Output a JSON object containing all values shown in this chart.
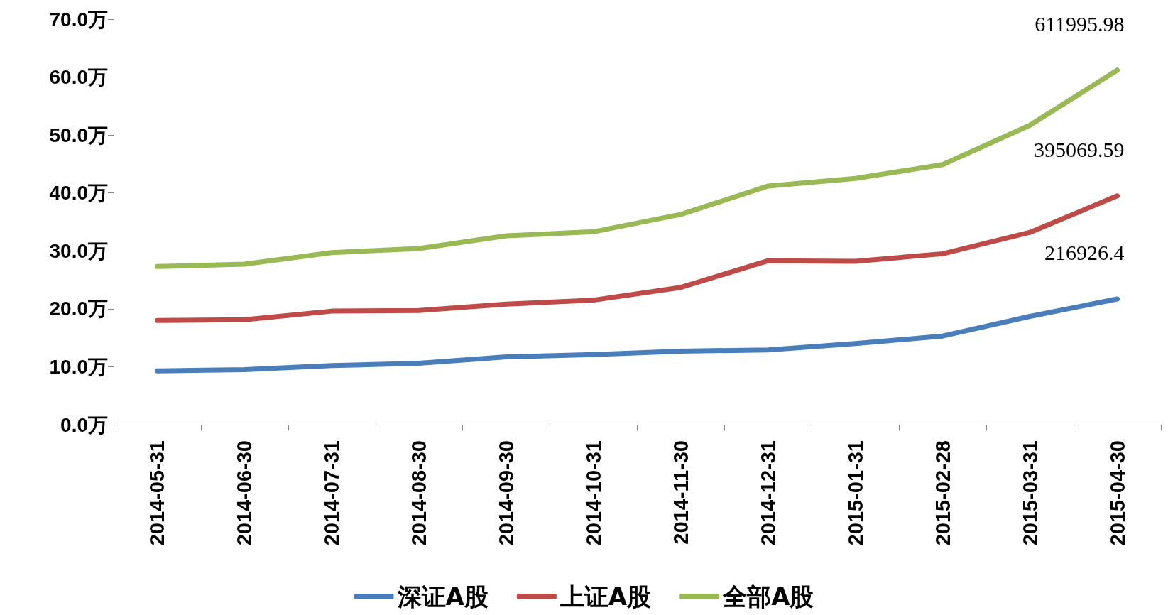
{
  "chart_data": {
    "type": "line",
    "categories": [
      "2014-05-31",
      "2014-06-30",
      "2014-07-31",
      "2014-08-30",
      "2014-09-30",
      "2014-10-31",
      "2014-11-30",
      "2014-12-31",
      "2015-01-31",
      "2015-02-28",
      "2015-03-31",
      "2015-04-30"
    ],
    "series": [
      {
        "name": "深证A股",
        "color": "#4a7ebb",
        "values": [
          9.3,
          9.5,
          10.2,
          10.6,
          11.7,
          12.1,
          12.7,
          12.9,
          14.0,
          15.3,
          18.7,
          21.7
        ]
      },
      {
        "name": "上证A股",
        "color": "#be4b48",
        "values": [
          18.0,
          18.1,
          19.6,
          19.7,
          20.8,
          21.5,
          23.7,
          28.3,
          28.2,
          29.5,
          33.2,
          39.5
        ]
      },
      {
        "name": "全部A股",
        "color": "#98b954",
        "values": [
          27.3,
          27.7,
          29.7,
          30.4,
          32.6,
          33.3,
          36.3,
          41.2,
          42.5,
          44.9,
          51.7,
          61.2
        ]
      }
    ],
    "annotations": [
      {
        "text": "216926.4",
        "x": "2015-04-30",
        "y": 21.7
      },
      {
        "text": "395069.59",
        "x": "2015-04-30",
        "y": 39.5
      },
      {
        "text": "611995.98",
        "x": "2015-04-30",
        "y": 61.2
      }
    ],
    "ylim": [
      0,
      70
    ],
    "yticks": [
      {
        "value": 0,
        "label": "0.0万"
      },
      {
        "value": 10,
        "label": "10.0万"
      },
      {
        "value": 20,
        "label": "20.0万"
      },
      {
        "value": 30,
        "label": "30.0万"
      },
      {
        "value": 40,
        "label": "40.0万"
      },
      {
        "value": 50,
        "label": "50.0万"
      },
      {
        "value": 60,
        "label": "60.0万"
      },
      {
        "value": 70,
        "label": "70.0万"
      }
    ],
    "grid": false,
    "legend": "bottom",
    "marker": "none",
    "line_style": "solid"
  }
}
